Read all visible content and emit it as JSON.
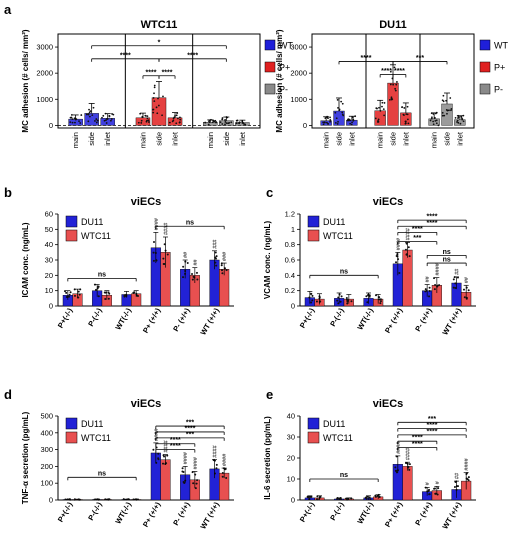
{
  "chart_data": [
    {
      "id": "a1",
      "panel": "a",
      "type": "bar",
      "title": "WTC11",
      "ylabel": "MC adhesion (# cells/ mm²)",
      "ylim": [
        -100,
        3500
      ],
      "yticks": [
        0,
        1000,
        2000,
        3000
      ],
      "groups": [
        "WT",
        "P+",
        "P-"
      ],
      "categories": [
        "main",
        "side",
        "inlet"
      ],
      "colors": {
        "WT": "#1f1fd9",
        "P+": "#e02020",
        "P-": "#8a8a8a"
      },
      "values": {
        "WT": [
          240,
          460,
          270
        ],
        "P+": [
          290,
          1060,
          290
        ],
        "P-": [
          120,
          180,
          110
        ]
      },
      "errors": {
        "WT": [
          160,
          380,
          180
        ],
        "P+": [
          180,
          620,
          200
        ],
        "P-": [
          90,
          140,
          90
        ]
      },
      "legend": [
        "WT",
        "P+",
        "P-"
      ],
      "dashed_zero": true,
      "significance": [
        {
          "from": [
            0,
            1
          ],
          "to": [
            2,
            1
          ],
          "label": "*",
          "y": 3050
        },
        {
          "from": [
            0,
            1
          ],
          "to": [
            1,
            1
          ],
          "label": "****",
          "y": 2550
        },
        {
          "from": [
            1,
            1
          ],
          "to": [
            2,
            1
          ],
          "label": "****",
          "y": 2550
        },
        {
          "from": [
            1,
            0
          ],
          "to": [
            1,
            1
          ],
          "label": "****",
          "y": 1900
        },
        {
          "from": [
            1,
            1
          ],
          "to": [
            1,
            2
          ],
          "label": "****",
          "y": 1900
        }
      ]
    },
    {
      "id": "a2",
      "panel": "",
      "type": "bar",
      "title": "DU11",
      "ylabel": "MC adhesion (# cells/ mm²)",
      "ylim": [
        -100,
        3500
      ],
      "yticks": [
        0,
        1000,
        2000,
        3000
      ],
      "groups": [
        "WT",
        "P+",
        "P-"
      ],
      "categories": [
        "main",
        "side",
        "inlet"
      ],
      "colors": {
        "WT": "#1f1fd9",
        "P+": "#e02020",
        "P-": "#8a8a8a"
      },
      "values": {
        "WT": [
          180,
          550,
          200
        ],
        "P+": [
          560,
          1620,
          480
        ],
        "P-": [
          250,
          820,
          220
        ]
      },
      "errors": {
        "WT": [
          150,
          500,
          150
        ],
        "P+": [
          400,
          700,
          380
        ],
        "P-": [
          230,
          420,
          150
        ]
      },
      "legend": [
        "WT",
        "P+",
        "P-"
      ],
      "dashed_zero": false,
      "significance": [
        {
          "from": [
            0,
            1
          ],
          "to": [
            1,
            1
          ],
          "label": "****",
          "y": 2450
        },
        {
          "from": [
            1,
            1
          ],
          "to": [
            2,
            1
          ],
          "label": "***",
          "y": 2450
        },
        {
          "from": [
            1,
            0
          ],
          "to": [
            1,
            1
          ],
          "label": "****",
          "y": 1950
        },
        {
          "from": [
            1,
            1
          ],
          "to": [
            1,
            2
          ],
          "label": "****",
          "y": 1950
        }
      ]
    },
    {
      "id": "b",
      "panel": "b",
      "type": "bar",
      "title": "viECs",
      "ylabel": "ICAM conc. (ng/mL)",
      "ylim": [
        0,
        60
      ],
      "yticks": [
        0,
        10,
        20,
        30,
        40,
        50,
        60
      ],
      "categories": [
        "P+(-/-)",
        "P-(-/-)",
        "WT(-/-)",
        "P+ (+/+)",
        "P- (+/+)",
        "WT (+/+)"
      ],
      "series": [
        {
          "name": "DU11",
          "color": "#2222d6",
          "values": [
            7,
            10,
            7.5,
            38,
            24,
            30
          ],
          "errors": [
            3,
            4,
            2,
            10,
            6,
            6
          ]
        },
        {
          "name": "WTC11",
          "color": "#e85050",
          "values": [
            8,
            7,
            8,
            35,
            20,
            24
          ],
          "errors": [
            3,
            3,
            2,
            10,
            5,
            4
          ]
        }
      ],
      "hash_marks": [
        [
          "",
          "",
          "",
          "",
          "",
          ""
        ],
        [
          "",
          "",
          "",
          "",
          "",
          ""
        ]
      ],
      "hash_marks_top": [
        [
          "",
          "",
          "",
          "####",
          "##",
          "###"
        ],
        [
          "",
          "",
          "",
          "####",
          "##",
          "###"
        ]
      ],
      "significance": [
        {
          "from": 0,
          "to": 2,
          "label": "ns",
          "y": 18,
          "label_above": true
        },
        {
          "from": 3,
          "to": 5,
          "label": "ns",
          "y": 52,
          "label_above": true
        }
      ]
    },
    {
      "id": "c",
      "panel": "c",
      "type": "bar",
      "title": "viECs",
      "ylabel": "VCAM conc. (ng/mL)",
      "ylim": [
        0,
        1.2
      ],
      "yticks": [
        0,
        0.2,
        0.4,
        0.6,
        0.8,
        1.0,
        1.2
      ],
      "categories": [
        "P+(-/-)",
        "P-(-/-)",
        "WT(-/-)",
        "P+ (+/+)",
        "P- (+/+)",
        "WT (+/+)"
      ],
      "series": [
        {
          "name": "DU11",
          "color": "#2222d6",
          "values": [
            0.11,
            0.1,
            0.1,
            0.55,
            0.2,
            0.3
          ],
          "errors": [
            0.08,
            0.07,
            0.07,
            0.15,
            0.08,
            0.08
          ]
        },
        {
          "name": "WTC11",
          "color": "#e85050",
          "values": [
            0.09,
            0.09,
            0.09,
            0.73,
            0.27,
            0.18
          ],
          "errors": [
            0.07,
            0.06,
            0.06,
            0.1,
            0.1,
            0.09
          ]
        }
      ],
      "hash_marks": [
        [
          "",
          "",
          "",
          "",
          "",
          ""
        ],
        [
          "",
          "",
          "",
          "",
          "",
          ""
        ]
      ],
      "hash_marks_top": [
        [
          "",
          "",
          "",
          "####",
          "##",
          "##"
        ],
        [
          "",
          "",
          "",
          "####",
          "####",
          "##"
        ]
      ],
      "significance": [
        {
          "from": 0,
          "to": 2,
          "label": "ns",
          "y": 0.4,
          "label_above": true
        },
        {
          "from": 3,
          "to": 5,
          "label": "****",
          "y": 1.12
        },
        {
          "from": 3,
          "to": 5,
          "label": "****",
          "y": 1.04
        },
        {
          "from": 3,
          "to": 4,
          "label": "****",
          "y": 0.96
        },
        {
          "from": 3,
          "to": 4,
          "label": "***",
          "y": 0.84
        },
        {
          "from": 4,
          "to": 5,
          "label": "ns",
          "y": 0.66
        },
        {
          "from": 4,
          "to": 5,
          "label": "ns",
          "y": 0.56
        }
      ]
    },
    {
      "id": "d",
      "panel": "d",
      "type": "bar",
      "title": "viECs",
      "ylabel": "TNF-α secretion (pg/mL)",
      "ylim": [
        0,
        500
      ],
      "yticks": [
        0,
        100,
        200,
        300,
        400,
        500
      ],
      "categories": [
        "P+(-/-)",
        "P-(-/-)",
        "WT(-/-)",
        "P+ (+/+)",
        "P- (+/+)",
        "WT (+/+)"
      ],
      "series": [
        {
          "name": "DU11",
          "color": "#2222d6",
          "values": [
            3,
            3,
            3,
            280,
            150,
            185
          ],
          "errors": [
            2,
            2,
            2,
            60,
            50,
            55
          ]
        },
        {
          "name": "WTC11",
          "color": "#e85050",
          "values": [
            3,
            3,
            3,
            240,
            120,
            160
          ],
          "errors": [
            2,
            2,
            2,
            30,
            50,
            30
          ]
        }
      ],
      "hash_marks": [
        [
          "",
          "",
          "",
          "",
          "",
          ""
        ],
        [
          "",
          "",
          "",
          "",
          "",
          ""
        ]
      ],
      "hash_marks_top": [
        [
          "",
          "",
          "",
          "####",
          "####",
          "####"
        ],
        [
          "",
          "",
          "",
          "####",
          "####",
          "####"
        ]
      ],
      "significance": [
        {
          "from": 0,
          "to": 2,
          "label": "ns",
          "y": 135,
          "label_above": true
        },
        {
          "from": 3,
          "to": 5,
          "label": "***",
          "y": 440
        },
        {
          "from": 3,
          "to": 5,
          "label": "****",
          "y": 405
        },
        {
          "from": 3,
          "to": 5,
          "label": "***",
          "y": 370
        },
        {
          "from": 3,
          "to": 4,
          "label": "****",
          "y": 335
        },
        {
          "from": 3,
          "to": 4,
          "label": "****",
          "y": 300
        }
      ]
    },
    {
      "id": "e",
      "panel": "e",
      "type": "bar",
      "title": "viECs",
      "ylabel": "IL-6 secretion (pg/mL)",
      "ylim": [
        0,
        40
      ],
      "yticks": [
        0,
        10,
        20,
        30,
        40
      ],
      "categories": [
        "P+(-/-)",
        "P-(-/-)",
        "WT(-/-)",
        "P+ (+/+)",
        "P- (+/+)",
        "WT (+/+)"
      ],
      "series": [
        {
          "name": "DU11",
          "color": "#2222d6",
          "values": [
            1,
            0.5,
            1,
            17,
            4,
            5
          ],
          "errors": [
            1,
            0.5,
            1,
            4,
            2,
            4
          ]
        },
        {
          "name": "WTC11",
          "color": "#e85050",
          "values": [
            1,
            0.5,
            1.5,
            16,
            4.5,
            9
          ],
          "errors": [
            1,
            0.5,
            1,
            2,
            2,
            4
          ]
        }
      ],
      "hash_marks": [
        [
          "",
          "",
          "",
          "",
          "",
          ""
        ],
        [
          "",
          "",
          "",
          "",
          "",
          ""
        ]
      ],
      "hash_marks_top": [
        [
          "",
          "",
          "",
          "####",
          "#",
          "##"
        ],
        [
          "",
          "",
          "",
          "####",
          "#",
          "####"
        ]
      ],
      "significance": [
        {
          "from": 0,
          "to": 2,
          "label": "ns",
          "y": 10,
          "label_above": true
        },
        {
          "from": 3,
          "to": 5,
          "label": "***",
          "y": 37
        },
        {
          "from": 3,
          "to": 5,
          "label": "****",
          "y": 34
        },
        {
          "from": 3,
          "to": 5,
          "label": "****",
          "y": 31
        },
        {
          "from": 3,
          "to": 4,
          "label": "****",
          "y": 28
        },
        {
          "from": 3,
          "to": 4,
          "label": "****",
          "y": 25
        }
      ]
    }
  ]
}
